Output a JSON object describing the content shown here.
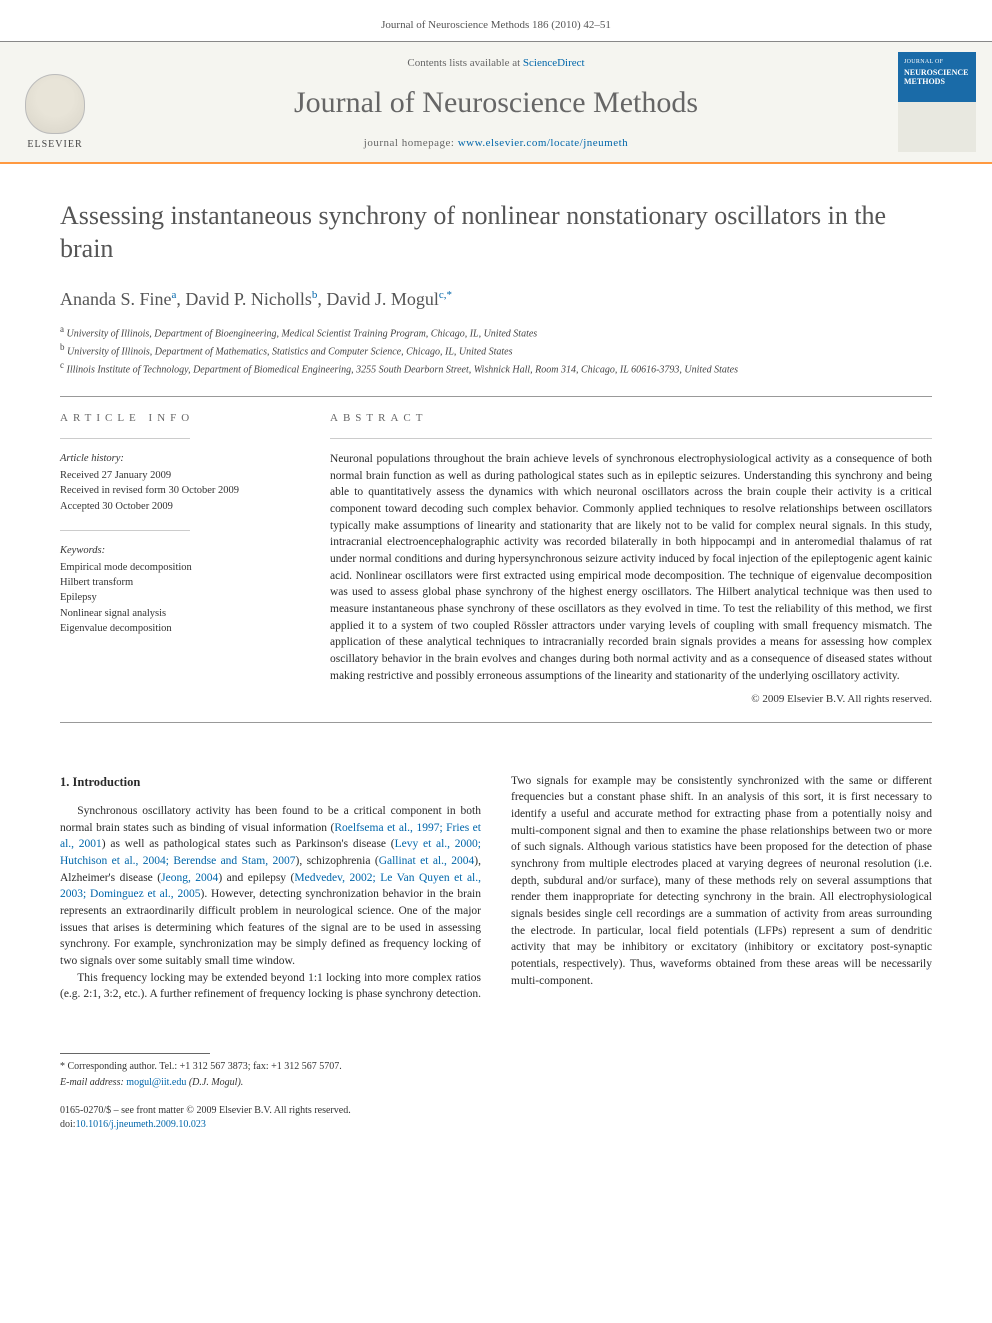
{
  "header": {
    "citation": "Journal of Neuroscience Methods 186 (2010) 42–51"
  },
  "masthead": {
    "contents_prefix": "Contents lists available at ",
    "contents_link": "ScienceDirect",
    "journal_title": "Journal of Neuroscience Methods",
    "homepage_prefix": "journal homepage: ",
    "homepage_url": "www.elsevier.com/locate/jneumeth",
    "publisher": "ELSEVIER",
    "cover_top": "JOURNAL OF",
    "cover_title": "NEUROSCIENCE METHODS"
  },
  "article": {
    "title": "Assessing instantaneous synchrony of nonlinear nonstationary oscillators in the brain",
    "authors_html": "Ananda S. Fine<sup>a</sup>, David P. Nicholls<sup>b</sup>, David J. Mogul<sup>c,*</sup>",
    "affiliations": [
      "a University of Illinois, Department of Bioengineering, Medical Scientist Training Program, Chicago, IL, United States",
      "b University of Illinois, Department of Mathematics, Statistics and Computer Science, Chicago, IL, United States",
      "c Illinois Institute of Technology, Department of Biomedical Engineering, 3255 South Dearborn Street, Wishnick Hall, Room 314, Chicago, IL 60616-3793, United States"
    ]
  },
  "info": {
    "section_label": "ARTICLE INFO",
    "history_head": "Article history:",
    "history_lines": [
      "Received 27 January 2009",
      "Received in revised form 30 October 2009",
      "Accepted 30 October 2009"
    ],
    "keywords_head": "Keywords:",
    "keywords": [
      "Empirical mode decomposition",
      "Hilbert transform",
      "Epilepsy",
      "Nonlinear signal analysis",
      "Eigenvalue decomposition"
    ]
  },
  "abstract": {
    "section_label": "ABSTRACT",
    "text": "Neuronal populations throughout the brain achieve levels of synchronous electrophysiological activity as a consequence of both normal brain function as well as during pathological states such as in epileptic seizures. Understanding this synchrony and being able to quantitatively assess the dynamics with which neuronal oscillators across the brain couple their activity is a critical component toward decoding such complex behavior. Commonly applied techniques to resolve relationships between oscillators typically make assumptions of linearity and stationarity that are likely not to be valid for complex neural signals. In this study, intracranial electroencephalographic activity was recorded bilaterally in both hippocampi and in anteromedial thalamus of rat under normal conditions and during hypersynchronous seizure activity induced by focal injection of the epileptogenic agent kainic acid. Nonlinear oscillators were first extracted using empirical mode decomposition. The technique of eigenvalue decomposition was used to assess global phase synchrony of the highest energy oscillators. The Hilbert analytical technique was then used to measure instantaneous phase synchrony of these oscillators as they evolved in time. To test the reliability of this method, we first applied it to a system of two coupled Rössler attractors under varying levels of coupling with small frequency mismatch. The application of these analytical techniques to intracranially recorded brain signals provides a means for assessing how complex oscillatory behavior in the brain evolves and changes during both normal activity and as a consequence of diseased states without making restrictive and possibly erroneous assumptions of the linearity and stationarity of the underlying oscillatory activity.",
    "copyright": "© 2009 Elsevier B.V. All rights reserved."
  },
  "intro": {
    "heading": "1.  Introduction",
    "para1_pre": "Synchronous oscillatory activity has been found to be a critical component in both normal brain states such as binding of visual information (",
    "ref1": "Roelfsema et al., 1997; Fries et al., 2001",
    "para1_mid1": ") as well as pathological states such as Parkinson's disease (",
    "ref2": "Levy et al., 2000; Hutchison et al., 2004; Berendse and Stam, 2007",
    "para1_mid2": "), schizophrenia (",
    "ref3": "Gallinat et al., 2004",
    "para1_mid3": "), Alzheimer's disease (",
    "ref4": "Jeong, 2004",
    "para1_mid4": ") and epilepsy (",
    "ref5": "Medvedev, 2002; Le Van Quyen et al., 2003; Dominguez et al., 2005",
    "para1_post": "). However, detecting synchronization behavior in the brain represents an extraordinarily difficult problem in neurological science. One of the major issues that arises is determining which features of the signal are to be used in assessing synchrony. For example, synchronization may be simply defined as frequency locking of two signals over some suitably small time window.",
    "para2": "This frequency locking may be extended beyond 1:1 locking into more complex ratios (e.g. 2:1, 3:2, etc.). A further refinement of frequency locking is phase synchrony detection. Two signals for example may be consistently synchronized with the same or different frequencies but a constant phase shift. In an analysis of this sort, it is first necessary to identify a useful and accurate method for extracting phase from a potentially noisy and multi-component signal and then to examine the phase relationships between two or more of such signals. Although various statistics have been proposed for the detection of phase synchrony from multiple electrodes placed at varying degrees of neuronal resolution (i.e. depth, subdural and/or surface), many of these methods rely on several assumptions that render them inappropriate for detecting synchrony in the brain. All electrophysiological signals besides single cell recordings are a summation of activity from areas surrounding the electrode. In particular, local field potentials (LFPs) represent a sum of dendritic activity that may be inhibitory or excitatory (inhibitory or excitatory post-synaptic potentials, respectively). Thus, waveforms obtained from these areas will be necessarily multi-component."
  },
  "footer": {
    "corr": "* Corresponding author. Tel.: +1 312 567 3873; fax: +1 312 567 5707.",
    "email_label": "E-mail address: ",
    "email": "mogul@iit.edu",
    "email_suffix": " (D.J. Mogul).",
    "issn_line": "0165-0270/$ – see front matter © 2009 Elsevier B.V. All rights reserved.",
    "doi_prefix": "doi:",
    "doi": "10.1016/j.jneumeth.2009.10.023"
  },
  "colors": {
    "accent_orange": "#ff9940",
    "link_blue": "#0066aa",
    "cover_blue": "#1a6ba8",
    "text_gray": "#555"
  }
}
